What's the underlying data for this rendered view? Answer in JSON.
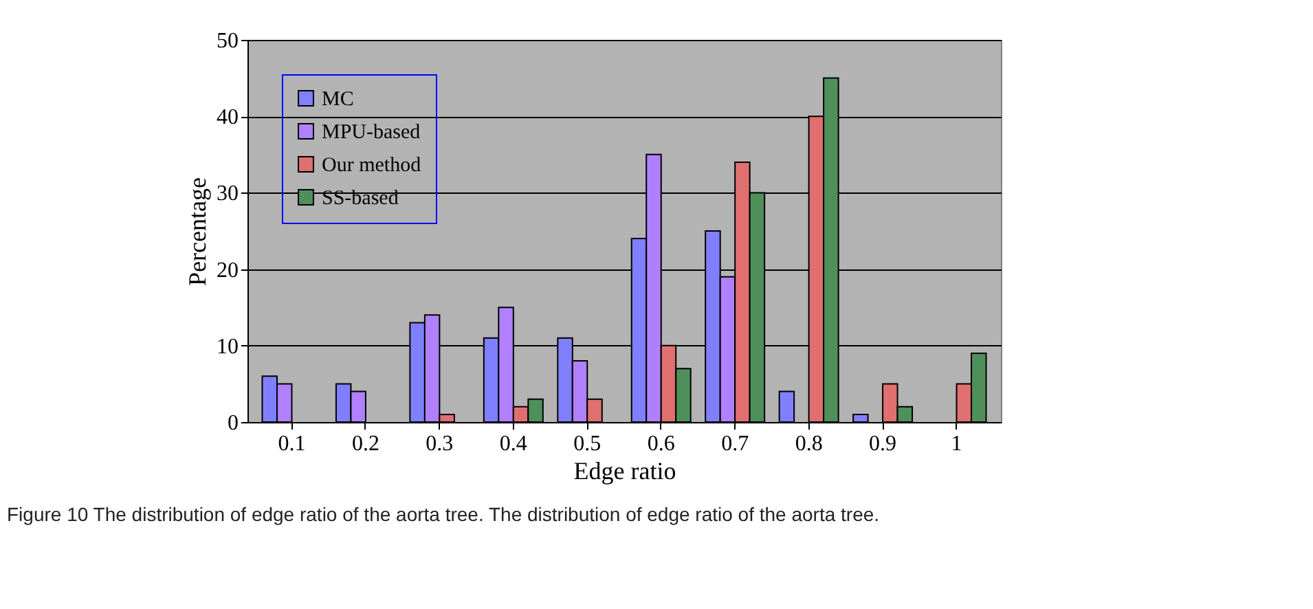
{
  "chart_data": {
    "type": "bar",
    "xlabel": "Edge ratio",
    "ylabel": "Percentage",
    "categories": [
      "0.1",
      "0.2",
      "0.3",
      "0.4",
      "0.5",
      "0.6",
      "0.7",
      "0.8",
      "0.9",
      "1"
    ],
    "series": [
      {
        "name": "MC",
        "color": "#8080ff",
        "values": [
          6,
          5,
          13,
          11,
          11,
          24,
          25,
          4,
          1,
          0
        ]
      },
      {
        "name": "MPU-based",
        "color": "#b080ff",
        "values": [
          5,
          4,
          14,
          15,
          8,
          35,
          19,
          0,
          0,
          0
        ]
      },
      {
        "name": "Our method",
        "color": "#e07070",
        "values": [
          0,
          0,
          1,
          2,
          3,
          10,
          34,
          40,
          5,
          5
        ]
      },
      {
        "name": "SS-based",
        "color": "#4f8f5a",
        "values": [
          0,
          0,
          0,
          3,
          0,
          7,
          30,
          45,
          2,
          9
        ]
      }
    ],
    "ylim": [
      0,
      50
    ],
    "yticks": [
      0,
      10,
      20,
      30,
      40,
      50
    ],
    "grid": "y",
    "legend": "top left",
    "annotations": [
      "Figure 10 The distribution of edge ratio of the aorta tree. The distribution of edge ratio of the aorta tree."
    ]
  }
}
